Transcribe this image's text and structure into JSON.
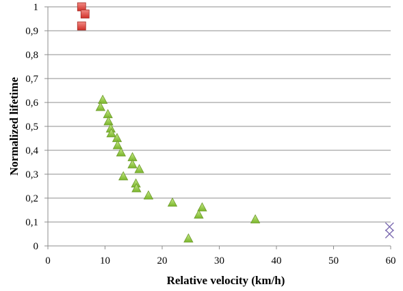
{
  "chart_data": {
    "type": "scatter",
    "xlabel": "Relative velocity (km/h)",
    "ylabel": "Normalized lifetime",
    "xlim": [
      0,
      60
    ],
    "ylim": [
      0,
      1
    ],
    "x_ticks": [
      "0",
      "10",
      "20",
      "30",
      "40",
      "50",
      "60"
    ],
    "y_ticks": [
      "0",
      "0,1",
      "0,2",
      "0,3",
      "0,4",
      "0,5",
      "0,6",
      "0,7",
      "0,8",
      "0,9",
      "1"
    ],
    "grid": true,
    "legend": "none",
    "series": [
      {
        "marker": "square",
        "color": "#e2463f",
        "points": [
          {
            "x": 5.9,
            "y": 1.0
          },
          {
            "x": 6.5,
            "y": 0.97
          },
          {
            "x": 5.9,
            "y": 0.92
          }
        ]
      },
      {
        "marker": "triangle",
        "color": "#8fca3c",
        "points": [
          {
            "x": 9.6,
            "y": 0.61
          },
          {
            "x": 9.2,
            "y": 0.58
          },
          {
            "x": 10.5,
            "y": 0.55
          },
          {
            "x": 10.6,
            "y": 0.52
          },
          {
            "x": 11.0,
            "y": 0.49
          },
          {
            "x": 11.1,
            "y": 0.47
          },
          {
            "x": 12.1,
            "y": 0.45
          },
          {
            "x": 12.2,
            "y": 0.42
          },
          {
            "x": 12.8,
            "y": 0.39
          },
          {
            "x": 14.8,
            "y": 0.37
          },
          {
            "x": 14.8,
            "y": 0.34
          },
          {
            "x": 16.0,
            "y": 0.32
          },
          {
            "x": 13.2,
            "y": 0.29
          },
          {
            "x": 15.4,
            "y": 0.26
          },
          {
            "x": 15.5,
            "y": 0.24
          },
          {
            "x": 17.6,
            "y": 0.21
          },
          {
            "x": 21.8,
            "y": 0.18
          },
          {
            "x": 27.0,
            "y": 0.16
          },
          {
            "x": 26.4,
            "y": 0.13
          },
          {
            "x": 36.3,
            "y": 0.11
          },
          {
            "x": 24.6,
            "y": 0.03
          }
        ]
      },
      {
        "marker": "x",
        "color": "#7b6ab0",
        "points": [
          {
            "x": 59.8,
            "y": 0.08
          },
          {
            "x": 59.8,
            "y": 0.05
          }
        ]
      }
    ]
  }
}
